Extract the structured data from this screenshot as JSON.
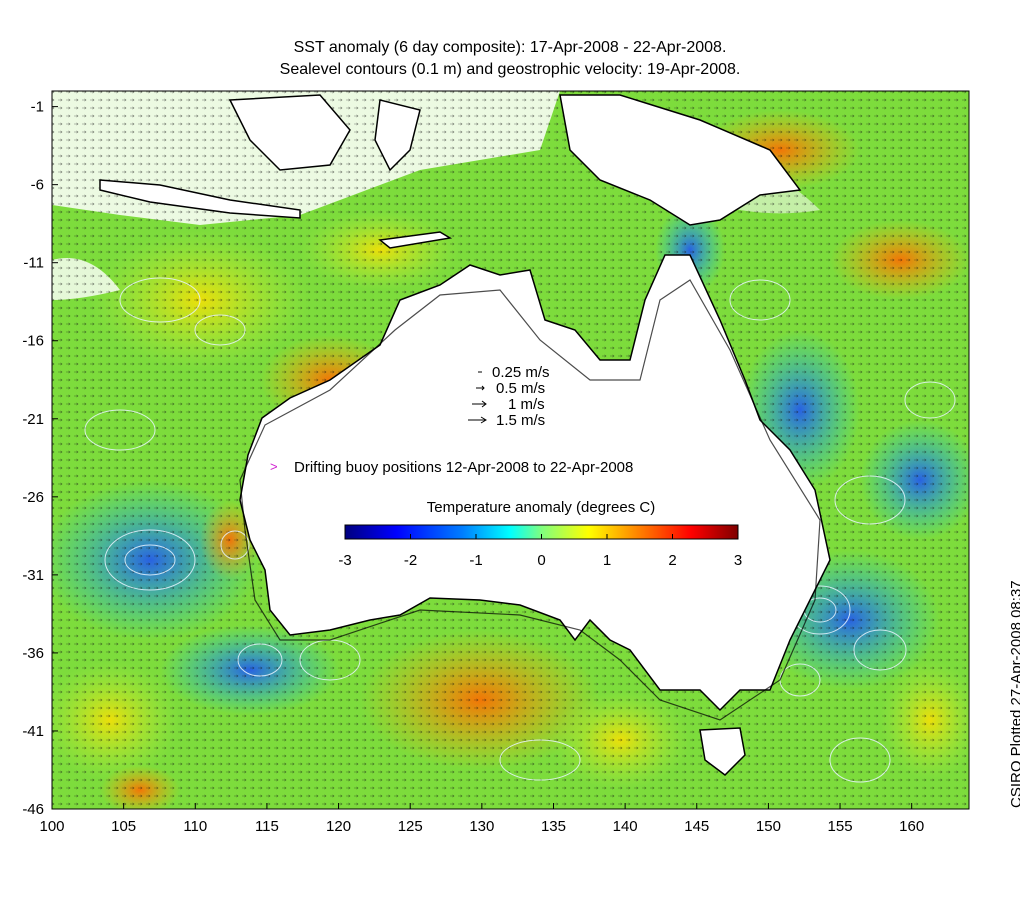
{
  "title": {
    "line1": "SST anomaly (6 day composite): 17-Apr-2008 - 22-Apr-2008.",
    "line2": "Sealevel contours (0.1 m) and geostrophic velocity: 19-Apr-2008."
  },
  "axes": {
    "x_ticks": [
      "100",
      "105",
      "110",
      "115",
      "120",
      "125",
      "130",
      "135",
      "140",
      "145",
      "150",
      "155",
      "160"
    ],
    "y_ticks": [
      "-1",
      "-6",
      "-11",
      "-16",
      "-21",
      "-26",
      "-31",
      "-36",
      "-41",
      "-46"
    ],
    "x_range": [
      100,
      164
    ],
    "y_range": [
      -46,
      0
    ]
  },
  "velocity_legend": {
    "items": [
      "0.25 m/s",
      "0.5 m/s",
      "1 m/s",
      "1.5 m/s"
    ]
  },
  "buoy_legend": {
    "symbol": ">",
    "label": "Drifting buoy positions 12-Apr-2008 to 22-Apr-2008"
  },
  "colorbar": {
    "title": "Temperature anomaly (degrees C)",
    "ticks": [
      "-3",
      "-2",
      "-1",
      "0",
      "1",
      "2",
      "3"
    ],
    "range": [
      -3,
      3
    ],
    "colors": [
      "#00007f",
      "#0000ff",
      "#007fff",
      "#00ffff",
      "#7fff7f",
      "#ffff00",
      "#ff7f00",
      "#ff0000",
      "#7f0000"
    ]
  },
  "credit": "CSIRO Plotted 27-Apr-2008 08:37"
}
